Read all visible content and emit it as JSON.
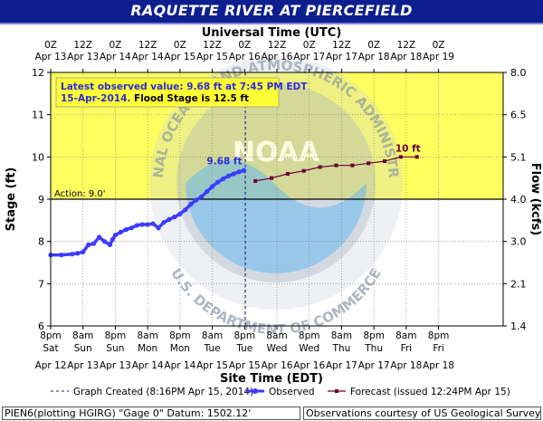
{
  "chart_data": {
    "type": "line",
    "title": "RAQUETTE RIVER AT PIERCEFIELD",
    "top_axis_label": "Universal Time (UTC)",
    "xlabel": "Site Time (EDT)",
    "ylabel": "Stage (ft)",
    "y2label": "Flow (kcfs)",
    "ylim": [
      6,
      12
    ],
    "y_ticks": [
      "6",
      "7",
      "8",
      "9",
      "10",
      "11",
      "12"
    ],
    "y2_ticks": [
      "1.4",
      "2.1",
      "3.0",
      "4.0",
      "5.1",
      "6.5",
      "8.0"
    ],
    "x_hours_range": [
      0,
      168
    ],
    "top_ticks": [
      {
        "l1": "0Z",
        "l2": "Apr 13"
      },
      {
        "l1": "12Z",
        "l2": "Apr 13"
      },
      {
        "l1": "0Z",
        "l2": "Apr 14"
      },
      {
        "l1": "12Z",
        "l2": "Apr 14"
      },
      {
        "l1": "0Z",
        "l2": "Apr 15"
      },
      {
        "l1": "12Z",
        "l2": "Apr 15"
      },
      {
        "l1": "0Z",
        "l2": "Apr 16"
      },
      {
        "l1": "12Z",
        "l2": "Apr 16"
      },
      {
        "l1": "0Z",
        "l2": "Apr 17"
      },
      {
        "l1": "12Z",
        "l2": "Apr 17"
      },
      {
        "l1": "0Z",
        "l2": "Apr 18"
      },
      {
        "l1": "12Z",
        "l2": "Apr 18"
      },
      {
        "l1": "0Z",
        "l2": "Apr 19"
      }
    ],
    "bottom_ticks": [
      {
        "l1": "8pm",
        "l2": "Sat",
        "l3": "Apr 12"
      },
      {
        "l1": "8am",
        "l2": "Sun",
        "l3": "Apr 13"
      },
      {
        "l1": "8pm",
        "l2": "Sun",
        "l3": "Apr 13"
      },
      {
        "l1": "8am",
        "l2": "Mon",
        "l3": "Apr 14"
      },
      {
        "l1": "8pm",
        "l2": "Mon",
        "l3": "Apr 14"
      },
      {
        "l1": "8am",
        "l2": "Tue",
        "l3": "Apr 15"
      },
      {
        "l1": "8pm",
        "l2": "Tue",
        "l3": "Apr 15"
      },
      {
        "l1": "8am",
        "l2": "Wed",
        "l3": "Apr 16"
      },
      {
        "l1": "8pm",
        "l2": "Wed",
        "l3": "Apr 16"
      },
      {
        "l1": "8am",
        "l2": "Thu",
        "l3": "Apr 17"
      },
      {
        "l1": "8pm",
        "l2": "Thu",
        "l3": "Apr 17"
      },
      {
        "l1": "8am",
        "l2": "Fri",
        "l3": "Apr 18"
      },
      {
        "l1": "8pm",
        "l2": "Fri",
        "l3": "Apr 18"
      }
    ],
    "action_stage": 9.0,
    "action_label": "Action: 9.0'",
    "flood_stage": 12.5,
    "graph_created_hour": 72.27,
    "observed": {
      "name": "Observed",
      "x": [
        0,
        4,
        8,
        10,
        12,
        14,
        16,
        18,
        20,
        22,
        23,
        24,
        26,
        28,
        30,
        32,
        34,
        36,
        38,
        40,
        42,
        44,
        46,
        48,
        50,
        52,
        54,
        56,
        58,
        60,
        62,
        64,
        66,
        68,
        70,
        71.75
      ],
      "y": [
        7.68,
        7.68,
        7.7,
        7.72,
        7.75,
        7.92,
        7.95,
        8.1,
        8.0,
        7.92,
        8.05,
        8.15,
        8.22,
        8.28,
        8.32,
        8.38,
        8.4,
        8.4,
        8.42,
        8.32,
        8.45,
        8.52,
        8.58,
        8.65,
        8.75,
        8.88,
        8.98,
        9.06,
        9.18,
        9.3,
        9.4,
        9.48,
        9.55,
        9.6,
        9.65,
        9.68
      ]
    },
    "forecast": {
      "name": "Forecast",
      "x": [
        76,
        82,
        88,
        94,
        100,
        106,
        112,
        118,
        124,
        130,
        136
      ],
      "y": [
        9.43,
        9.5,
        9.6,
        9.67,
        9.76,
        9.8,
        9.8,
        9.85,
        9.9,
        10.0,
        10.0
      ]
    },
    "observed_label": "9.68 ft",
    "forecast_label": "10 ft",
    "info_box": {
      "line1": "Latest observed value: 9.68 ft at 7:45 PM EDT",
      "line2_date": "15-Apr-2014.",
      "line2_flood": "Flood Stage is 12.5 ft"
    },
    "legend": {
      "created": "Graph Created (8:16PM Apr 15, 2014)",
      "observed": "Observed",
      "forecast": "Forecast (issued 12:24PM Apr 15)"
    },
    "watermark": {
      "noaa_ring": "NATIONAL OCEANIC AND ATMOSPHERIC ADMINISTRATION",
      "noaa_center": "NOAA",
      "doc_ring": "U.S. DEPARTMENT OF COMMERCE"
    },
    "colors": {
      "title_bar": "#0d1f8e",
      "observed": "#3b3bff",
      "forecast": "#660033",
      "yellow": "#ffff33",
      "label_blue": "#2b2bd9"
    }
  },
  "footer": {
    "left": "PIEN6(plotting HGIRG) \"Gage 0\" Datum: 1502.12'",
    "right": "Observations courtesy of US Geological Survey"
  }
}
